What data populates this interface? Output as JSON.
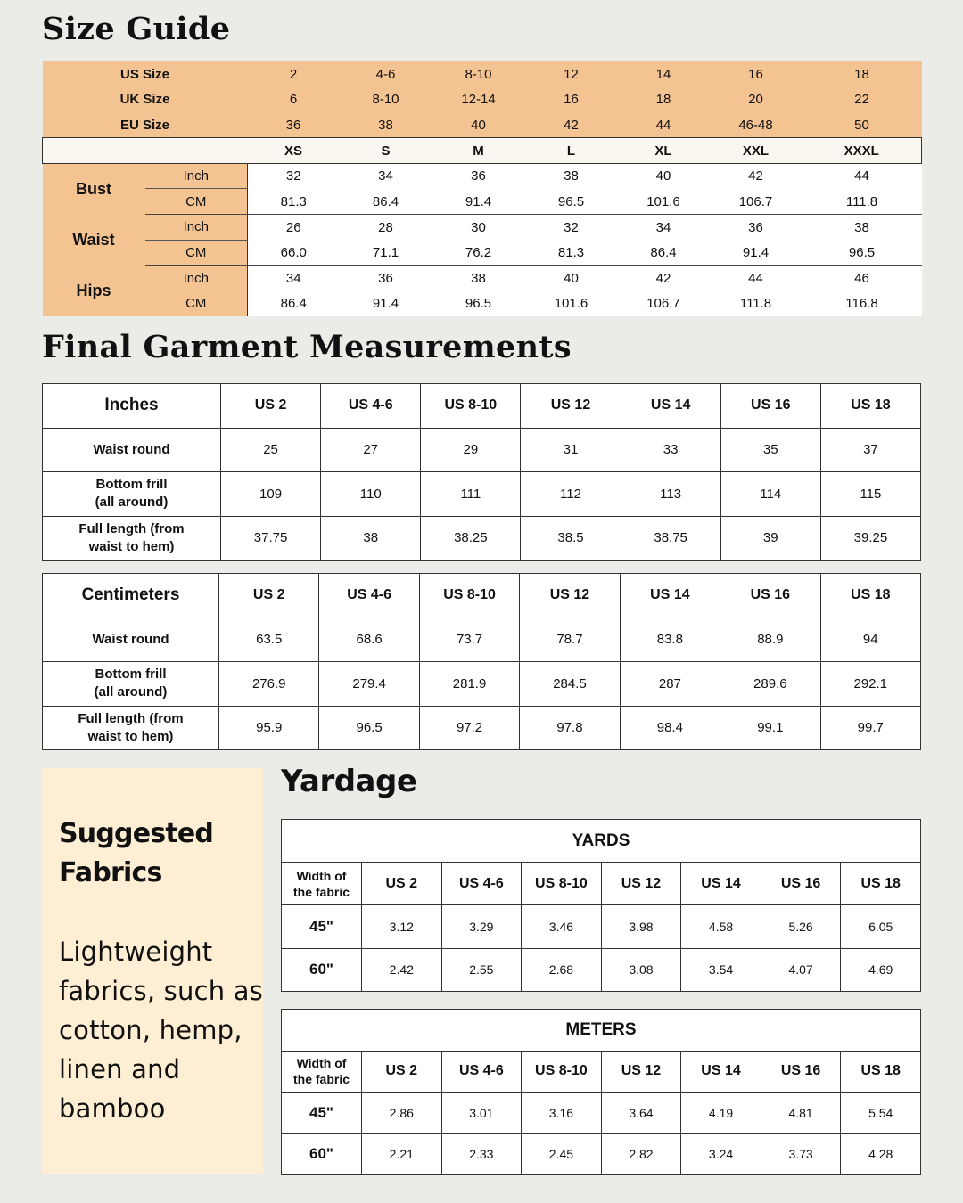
{
  "size_guide": {
    "title": "Size Guide",
    "size_rows": [
      {
        "label": "US Size",
        "values": [
          "2",
          "4-6",
          "8-10",
          "12",
          "14",
          "16",
          "18"
        ]
      },
      {
        "label": "UK Size",
        "values": [
          "6",
          "8-10",
          "12-14",
          "16",
          "18",
          "20",
          "22"
        ]
      },
      {
        "label": "EU Size",
        "values": [
          "36",
          "38",
          "40",
          "42",
          "44",
          "46-48",
          "50"
        ]
      }
    ],
    "letter_sizes": [
      "XS",
      "S",
      "M",
      "L",
      "XL",
      "XXL",
      "XXXL"
    ],
    "measurements": [
      {
        "label": "Bust",
        "inch_label": "Inch",
        "cm_label": "CM",
        "inch": [
          "32",
          "34",
          "36",
          "38",
          "40",
          "42",
          "44"
        ],
        "cm": [
          "81.3",
          "86.4",
          "91.4",
          "96.5",
          "101.6",
          "106.7",
          "111.8"
        ]
      },
      {
        "label": "Waist",
        "inch_label": "Inch",
        "cm_label": "CM",
        "inch": [
          "26",
          "28",
          "30",
          "32",
          "34",
          "36",
          "38"
        ],
        "cm": [
          "66.0",
          "71.1",
          "76.2",
          "81.3",
          "86.4",
          "91.4",
          "96.5"
        ]
      },
      {
        "label": "Hips",
        "inch_label": "Inch",
        "cm_label": "CM",
        "inch": [
          "34",
          "36",
          "38",
          "40",
          "42",
          "44",
          "46"
        ],
        "cm": [
          "86.4",
          "91.4",
          "96.5",
          "101.6",
          "106.7",
          "111.8",
          "116.8"
        ]
      }
    ],
    "colors": {
      "header": "#f3c391",
      "letter_row": "#faf6f0"
    }
  },
  "garment": {
    "title": "Final Garment Measurements",
    "tables": [
      {
        "unit_label": "Inches",
        "columns": [
          "US 2",
          "US 4-6",
          "US 8-10",
          "US 12",
          "US 14",
          "US 16",
          "US 18"
        ],
        "rows": [
          {
            "label": "Waist round",
            "values": [
              "25",
              "27",
              "29",
              "31",
              "33",
              "35",
              "37"
            ]
          },
          {
            "label": "Bottom frill\n(all around)",
            "values": [
              "109",
              "110",
              "111",
              "112",
              "113",
              "114",
              "115"
            ]
          },
          {
            "label": "Full length (from\nwaist to hem)",
            "values": [
              "37.75",
              "38",
              "38.25",
              "38.5",
              "38.75",
              "39",
              "39.25"
            ]
          }
        ]
      },
      {
        "unit_label": "Centimeters",
        "columns": [
          "US 2",
          "US 4-6",
          "US 8-10",
          "US 12",
          "US 14",
          "US 16",
          "US 18"
        ],
        "rows": [
          {
            "label": "Waist round",
            "values": [
              "63.5",
              "68.6",
              "73.7",
              "78.7",
              "83.8",
              "88.9",
              "94"
            ]
          },
          {
            "label": "Bottom frill\n(all around)",
            "values": [
              "276.9",
              "279.4",
              "281.9",
              "284.5",
              "287",
              "289.6",
              "292.1"
            ]
          },
          {
            "label": "Full length (from\nwaist to hem)",
            "values": [
              "95.9",
              "96.5",
              "97.2",
              "97.8",
              "98.4",
              "99.1",
              "99.7"
            ]
          }
        ]
      }
    ]
  },
  "fabrics": {
    "heading": "Suggested Fabrics",
    "text": "Lightweight fabrics, such as cotton, hemp, linen and bamboo",
    "background": "#fdeed4"
  },
  "yardage": {
    "title": "Yardage",
    "tables": [
      {
        "title": "YARDS",
        "width_label": "Width of\nthe fabric",
        "columns": [
          "US 2",
          "US 4-6",
          "US 8-10",
          "US 12",
          "US 14",
          "US 16",
          "US 18"
        ],
        "rows": [
          {
            "label": "45\"",
            "values": [
              "3.12",
              "3.29",
              "3.46",
              "3.98",
              "4.58",
              "5.26",
              "6.05"
            ]
          },
          {
            "label": "60\"",
            "values": [
              "2.42",
              "2.55",
              "2.68",
              "3.08",
              "3.54",
              "4.07",
              "4.69"
            ]
          }
        ]
      },
      {
        "title": "METERS",
        "width_label": "Width of\nthe fabric",
        "columns": [
          "US 2",
          "US 4-6",
          "US 8-10",
          "US 12",
          "US 14",
          "US 16",
          "US 18"
        ],
        "rows": [
          {
            "label": "45\"",
            "values": [
              "2.86",
              "3.01",
              "3.16",
              "3.64",
              "4.19",
              "4.81",
              "5.54"
            ]
          },
          {
            "label": "60\"",
            "values": [
              "2.21",
              "2.33",
              "2.45",
              "2.82",
              "3.24",
              "3.73",
              "4.28"
            ]
          }
        ]
      }
    ]
  }
}
